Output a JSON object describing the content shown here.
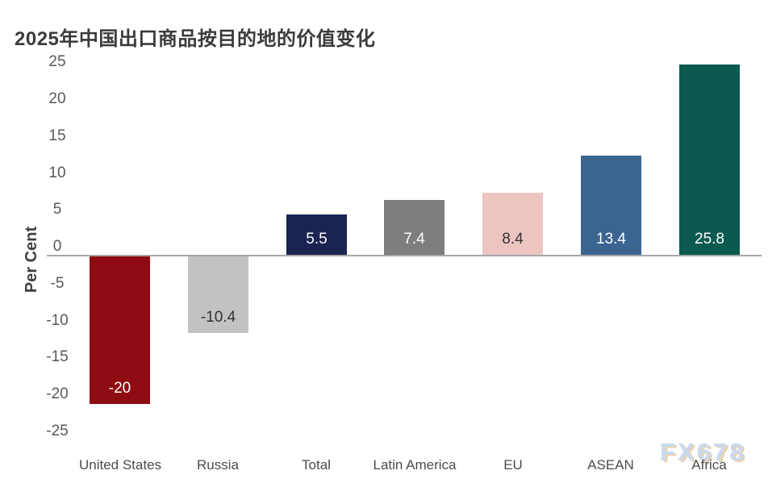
{
  "page": {
    "title": "2025年中国出口商品按目的地的价值变化",
    "watermark": "FX678"
  },
  "chart_data": {
    "type": "bar",
    "title": "2025年中国出口商品按目的地的价值变化",
    "ylabel": "Per Cent",
    "xlabel": "",
    "ylim": [
      -25,
      25
    ],
    "yticks": [
      25,
      20,
      15,
      10,
      5,
      0,
      -5,
      -10,
      -15,
      -20,
      -25
    ],
    "grid": false,
    "legend": "none",
    "categories": [
      "United States",
      "Russia",
      "Total",
      "Latin America",
      "EU",
      "ASEAN",
      "Africa"
    ],
    "values": [
      -20,
      -10.4,
      5.5,
      7.4,
      8.4,
      13.4,
      25.8
    ],
    "value_labels": [
      "-20",
      "-10.4",
      "5.5",
      "7.4",
      "8.4",
      "13.4",
      "25.8"
    ],
    "bar_colors": [
      "#8e0c11",
      "#c2c2c2",
      "#1b2351",
      "#7e7e7e",
      "#ecc5c1",
      "#3b6591",
      "#0b5a50"
    ],
    "value_label_colors": [
      "#ffffff",
      "#333333",
      "#ffffff",
      "#ffffff",
      "#333333",
      "#ffffff",
      "#ffffff"
    ],
    "axis_color": "#a7a7a7",
    "tick_text_color": "#595959",
    "category_text_color": "#4c4c4c",
    "title_color": "#3b3b3b",
    "watermark_colors": {
      "fill": "#c7d9ef",
      "shadow": "#e9d2b5"
    }
  }
}
